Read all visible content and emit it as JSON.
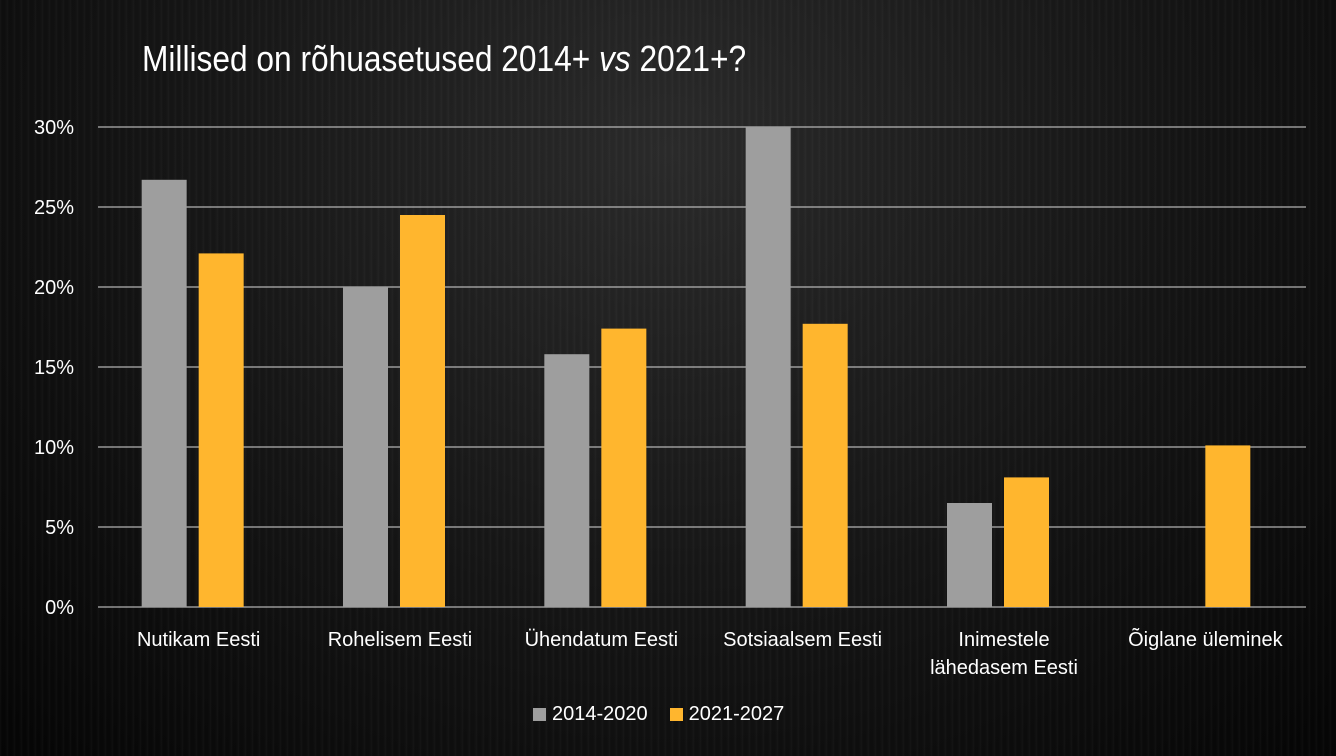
{
  "title": {
    "pre": "Millised on rõhuasetused 2014+",
    "vs": "vs",
    "post": "2021+?"
  },
  "colors": {
    "series_2014": "#9e9e9e",
    "series_2021": "#ffb62e",
    "grid": "#d9d9d9"
  },
  "chart_data": {
    "type": "bar",
    "title": "Millised on rõhuasetused 2014+ vs 2021+?",
    "categories": [
      [
        "Nutikam Eesti"
      ],
      [
        "Rohelisem Eesti"
      ],
      [
        "Ühendatum Eesti"
      ],
      [
        "Sotsiaalsem Eesti"
      ],
      [
        "Inimestele",
        "lähedasem Eesti"
      ],
      [
        "Õiglane üleminek"
      ]
    ],
    "series": [
      {
        "name": "2014-2020",
        "values": [
          26.7,
          20.0,
          15.8,
          30.0,
          6.5,
          null
        ]
      },
      {
        "name": "2021-2027",
        "values": [
          22.1,
          24.5,
          17.4,
          17.7,
          8.1,
          10.1
        ]
      }
    ],
    "ylim": [
      0,
      30
    ],
    "yticks": [
      "0%",
      "5%",
      "10%",
      "15%",
      "20%",
      "25%",
      "30%"
    ],
    "ytick_values": [
      0,
      5,
      10,
      15,
      20,
      25,
      30
    ],
    "grid": true,
    "legend_position": "bottom"
  }
}
